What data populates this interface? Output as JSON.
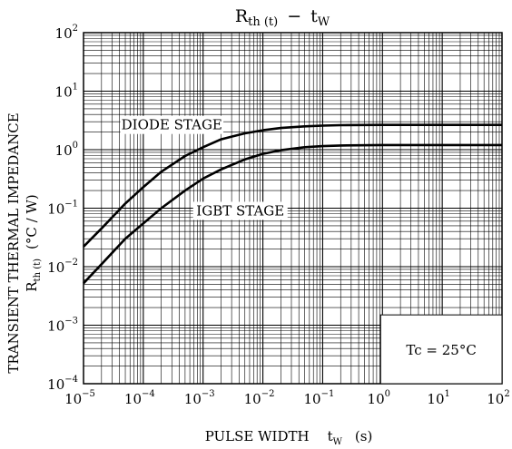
{
  "chart_data": {
    "type": "line",
    "title": {
      "main": "R",
      "main_sub": "th (t)",
      "dash": "−",
      "var": "t",
      "var_sub": "W"
    },
    "x_scale": "log",
    "y_scale": "log",
    "xlim": [
      1e-05,
      100
    ],
    "ylim": [
      0.0001,
      100
    ],
    "x_ticks": [
      {
        "base": "10",
        "exp": "−5"
      },
      {
        "base": "10",
        "exp": "−4"
      },
      {
        "base": "10",
        "exp": "−3"
      },
      {
        "base": "10",
        "exp": "−2"
      },
      {
        "base": "10",
        "exp": "−1"
      },
      {
        "base": "10",
        "exp": "0"
      },
      {
        "base": "10",
        "exp": "1"
      },
      {
        "base": "10",
        "exp": "2"
      }
    ],
    "y_ticks": [
      {
        "base": "10",
        "exp": "2"
      },
      {
        "base": "10",
        "exp": "1"
      },
      {
        "base": "10",
        "exp": "0"
      },
      {
        "base": "10",
        "exp": "−1"
      },
      {
        "base": "10",
        "exp": "−2"
      },
      {
        "base": "10",
        "exp": "−3"
      },
      {
        "base": "10",
        "exp": "−4"
      }
    ],
    "xlabel": {
      "text": "PULSE WIDTH",
      "var": "t",
      "sub": "W",
      "unit": "(s)"
    },
    "ylabel": {
      "line1": "TRANSIENT THERMAL IMPEDANCE",
      "line2_main": "R",
      "line2_sub": "th (t)",
      "line2_unit": "(°C / W)"
    },
    "grid": true,
    "annotation": "Tc = 25°C",
    "series": [
      {
        "name": "DIODE STAGE",
        "points": [
          [
            1e-05,
            0.022
          ],
          [
            2e-05,
            0.045
          ],
          [
            5e-05,
            0.12
          ],
          [
            0.0001,
            0.23
          ],
          [
            0.0002,
            0.42
          ],
          [
            0.0005,
            0.78
          ],
          [
            0.001,
            1.1
          ],
          [
            0.002,
            1.5
          ],
          [
            0.005,
            1.9
          ],
          [
            0.01,
            2.15
          ],
          [
            0.02,
            2.35
          ],
          [
            0.05,
            2.5
          ],
          [
            0.1,
            2.58
          ],
          [
            0.2,
            2.62
          ],
          [
            1,
            2.65
          ],
          [
            100,
            2.65
          ]
        ]
      },
      {
        "name": "IGBT STAGE",
        "points": [
          [
            1e-05,
            0.0052
          ],
          [
            2e-05,
            0.011
          ],
          [
            5e-05,
            0.03
          ],
          [
            0.0001,
            0.055
          ],
          [
            0.0002,
            0.1
          ],
          [
            0.0005,
            0.2
          ],
          [
            0.001,
            0.32
          ],
          [
            0.002,
            0.46
          ],
          [
            0.005,
            0.68
          ],
          [
            0.01,
            0.85
          ],
          [
            0.02,
            0.98
          ],
          [
            0.05,
            1.1
          ],
          [
            0.1,
            1.15
          ],
          [
            0.2,
            1.18
          ],
          [
            1,
            1.2
          ],
          [
            100,
            1.2
          ]
        ]
      }
    ],
    "labels": [
      {
        "series": "DIODE STAGE",
        "text": "DIODE STAGE"
      },
      {
        "series": "IGBT STAGE",
        "text": "IGBT STAGE"
      }
    ]
  }
}
